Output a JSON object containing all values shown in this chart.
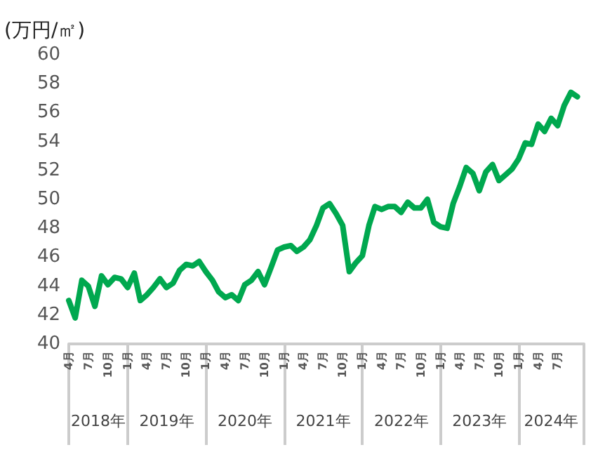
{
  "chart_data": {
    "type": "line",
    "ylabel": "(万円/㎡)",
    "x": [
      "2018-04",
      "2018-05",
      "2018-06",
      "2018-07",
      "2018-08",
      "2018-09",
      "2018-10",
      "2018-11",
      "2018-12",
      "2019-01",
      "2019-02",
      "2019-03",
      "2019-04",
      "2019-05",
      "2019-06",
      "2019-07",
      "2019-08",
      "2019-09",
      "2019-10",
      "2019-11",
      "2019-12",
      "2020-01",
      "2020-02",
      "2020-03",
      "2020-04",
      "2020-05",
      "2020-06",
      "2020-07",
      "2020-08",
      "2020-09",
      "2020-10",
      "2020-11",
      "2020-12",
      "2021-01",
      "2021-02",
      "2021-03",
      "2021-04",
      "2021-05",
      "2021-06",
      "2021-07",
      "2021-08",
      "2021-09",
      "2021-10",
      "2021-11",
      "2021-12",
      "2022-01",
      "2022-02",
      "2022-03",
      "2022-04",
      "2022-05",
      "2022-06",
      "2022-07",
      "2022-08",
      "2022-09",
      "2022-10",
      "2022-11",
      "2022-12",
      "2023-01",
      "2023-02",
      "2023-03",
      "2023-04",
      "2023-05",
      "2023-06",
      "2023-07",
      "2023-08",
      "2023-09",
      "2023-10",
      "2023-11",
      "2023-12",
      "2024-01",
      "2024-02",
      "2024-03",
      "2024-04",
      "2024-05",
      "2024-06",
      "2024-07",
      "2024-08",
      "2024-09",
      "2024-10"
    ],
    "series": [
      {
        "color": "#00a84f",
        "values": [
          43.0,
          41.8,
          44.4,
          44.0,
          42.6,
          44.7,
          44.1,
          44.6,
          44.5,
          43.9,
          44.9,
          43.0,
          43.4,
          43.9,
          44.5,
          43.9,
          44.2,
          45.1,
          45.5,
          45.4,
          45.7,
          45.0,
          44.4,
          43.6,
          43.2,
          43.4,
          43.0,
          44.1,
          44.4,
          45.0,
          44.1,
          45.3,
          46.5,
          46.7,
          46.8,
          46.4,
          46.7,
          47.2,
          48.2,
          49.4,
          49.7,
          49.0,
          48.2,
          45.0,
          45.6,
          46.1,
          48.2,
          49.5,
          49.3,
          49.5,
          49.5,
          49.1,
          49.8,
          49.4,
          49.4,
          50.0,
          48.4,
          48.1,
          48.0,
          49.7,
          50.9,
          52.2,
          51.8,
          50.6,
          51.9,
          52.4,
          51.3,
          51.7,
          52.1,
          52.8,
          53.9,
          53.8,
          55.2,
          54.7,
          55.6,
          55.1,
          56.5,
          57.4,
          57.1
        ]
      }
    ],
    "xlim": [
      "2018-04",
      "2024-11"
    ],
    "xticks": [
      {
        "value": "2018-04",
        "label": "4月"
      },
      {
        "value": "2018-07",
        "label": "7月"
      },
      {
        "value": "2018-10",
        "label": "10月"
      },
      {
        "value": "2019-01",
        "label": "1月"
      },
      {
        "value": "2019-04",
        "label": "4月"
      },
      {
        "value": "2019-07",
        "label": "7月"
      },
      {
        "value": "2019-10",
        "label": "10月"
      },
      {
        "value": "2020-01",
        "label": "1月"
      },
      {
        "value": "2020-04",
        "label": "4月"
      },
      {
        "value": "2020-07",
        "label": "7月"
      },
      {
        "value": "2020-10",
        "label": "10月"
      },
      {
        "value": "2021-01",
        "label": "1月"
      },
      {
        "value": "2021-04",
        "label": "4月"
      },
      {
        "value": "2021-07",
        "label": "7月"
      },
      {
        "value": "2021-10",
        "label": "10月"
      },
      {
        "value": "2022-01",
        "label": "1月"
      },
      {
        "value": "2022-04",
        "label": "4月"
      },
      {
        "value": "2022-07",
        "label": "7月"
      },
      {
        "value": "2022-10",
        "label": "10月"
      },
      {
        "value": "2023-01",
        "label": "1月"
      },
      {
        "value": "2023-04",
        "label": "4月"
      },
      {
        "value": "2023-07",
        "label": "7月"
      },
      {
        "value": "2023-10",
        "label": "10月"
      },
      {
        "value": "2024-01",
        "label": "1月"
      },
      {
        "value": "2024-04",
        "label": "4月"
      },
      {
        "value": "2024-07",
        "label": "7月"
      }
    ],
    "ylim": [
      40,
      60
    ],
    "yticks": [
      40,
      42,
      44,
      46,
      48,
      50,
      52,
      54,
      56,
      58,
      60
    ],
    "annotations": [
      "2018年",
      "2019年",
      "2020年",
      "2021年",
      "2022年",
      "2023年",
      "2024年"
    ],
    "marker": "none",
    "line_style": "solid",
    "grid": false
  }
}
